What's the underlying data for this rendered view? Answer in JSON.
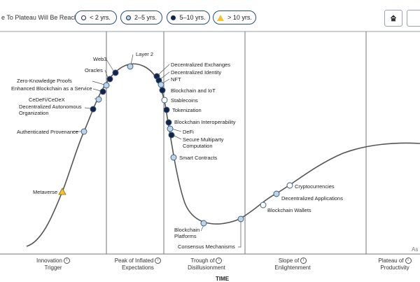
{
  "legend": {
    "title": "e To Plateau Will Be Reached:",
    "items": [
      {
        "label": "< 2 yrs.",
        "marker": "white"
      },
      {
        "label": "2–5 yrs.",
        "marker": "lightblue"
      },
      {
        "label": "5–10 yrs.",
        "marker": "navy"
      },
      {
        "label": "> 10 yrs.",
        "marker": "triangle"
      }
    ]
  },
  "toolbar": {
    "home_icon": "home-icon",
    "next_button": "next-button"
  },
  "colors": {
    "white": "#ffffff",
    "lightblue": "#bcd3e8",
    "navy": "#14234a",
    "triangle": "#f2c230",
    "outline": "#3b5876",
    "curve": "#555555",
    "divider": "#777777"
  },
  "phases": [
    {
      "line1": "Innovation",
      "line2": "Trigger"
    },
    {
      "line1": "Peak of Inflated",
      "line2": "Expectations"
    },
    {
      "line1": "Trough of",
      "line2": "Disillusionment"
    },
    {
      "line1": "Slope of",
      "line2": "Enlightenment"
    },
    {
      "line1": "Plateau of",
      "line2": "Productivity"
    }
  ],
  "technologies": [
    {
      "name": "Metaverse",
      "marker": "triangle"
    },
    {
      "name": "Authenticated Provenance",
      "marker": "lightblue"
    },
    {
      "name": "Decentralized Autonomous Organization",
      "marker": "navy"
    },
    {
      "name": "CeDeFi/CeDeX",
      "marker": "lightblue"
    },
    {
      "name": "Enhanced Blockchain as a Service",
      "marker": "navy"
    },
    {
      "name": "Zero-Knowledge Proofs",
      "marker": "lightblue"
    },
    {
      "name": "Oracles",
      "marker": "navy"
    },
    {
      "name": "Web3",
      "marker": "navy"
    },
    {
      "name": "Layer 2",
      "marker": "lightblue"
    },
    {
      "name": "Decentralized Exchanges",
      "marker": "navy"
    },
    {
      "name": "Decentralized Identity",
      "marker": "navy"
    },
    {
      "name": "NFT",
      "marker": "lightblue"
    },
    {
      "name": "Blockchain and IoT",
      "marker": "navy"
    },
    {
      "name": "Stablecoins",
      "marker": "white"
    },
    {
      "name": "Tokenization",
      "marker": "navy"
    },
    {
      "name": "Blockchain Interoperability",
      "marker": "navy"
    },
    {
      "name": "DeFi",
      "marker": "lightblue"
    },
    {
      "name": "Secure Multiparty Computation",
      "marker": "navy"
    },
    {
      "name": "Smart Contracts",
      "marker": "lightblue"
    },
    {
      "name": "Blockchain Platforms",
      "marker": "lightblue"
    },
    {
      "name": "Consensus Mechanisms",
      "marker": "lightblue"
    },
    {
      "name": "Blockchain Wallets",
      "marker": "white"
    },
    {
      "name": "Decentralized Applications",
      "marker": "lightblue"
    },
    {
      "name": "Cryptocurrencies",
      "marker": "white"
    }
  ],
  "axis": {
    "corner_label": "As",
    "bottom_label": "TIME"
  }
}
